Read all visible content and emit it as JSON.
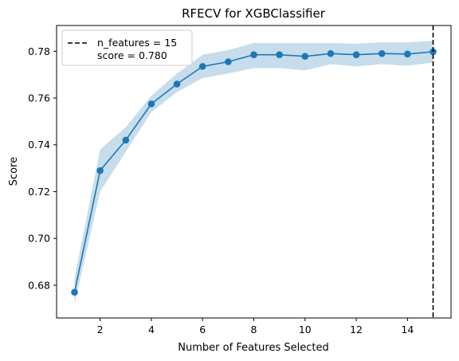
{
  "chart_data": {
    "type": "line",
    "title": "RFECV for XGBClassifier",
    "xlabel": "Number of Features Selected",
    "ylabel": "Score",
    "xlim": [
      0.3,
      15.7
    ],
    "ylim": [
      0.666,
      0.791
    ],
    "xticks": [
      2,
      4,
      6,
      8,
      10,
      12,
      14
    ],
    "yticks": [
      0.68,
      0.7,
      0.72,
      0.74,
      0.76,
      0.78
    ],
    "ytick_labels": [
      "0.68",
      "0.70",
      "0.72",
      "0.74",
      "0.76",
      "0.78"
    ],
    "grid": false,
    "legend_position": "top-left",
    "colors": {
      "line": "#1f77b4",
      "band": "#1f77b4",
      "vline": "#000000"
    },
    "series": [
      {
        "x": [
          1,
          2,
          3,
          4,
          5,
          6,
          7,
          8,
          9,
          10,
          11,
          12,
          13,
          14,
          15
        ],
        "values": [
          0.677,
          0.729,
          0.742,
          0.7575,
          0.766,
          0.7735,
          0.7755,
          0.7785,
          0.7785,
          0.7778,
          0.779,
          0.7785,
          0.779,
          0.7788,
          0.7798
        ],
        "upper": [
          0.683,
          0.738,
          0.7475,
          0.761,
          0.7705,
          0.7785,
          0.7805,
          0.7835,
          0.7835,
          0.7835,
          0.7835,
          0.7832,
          0.7838,
          0.7838,
          0.7845
        ],
        "lower": [
          0.672,
          0.72,
          0.737,
          0.754,
          0.7625,
          0.7685,
          0.7705,
          0.7728,
          0.7728,
          0.7718,
          0.7745,
          0.7735,
          0.7745,
          0.7738,
          0.7752
        ]
      }
    ],
    "vline": {
      "x": 15
    },
    "legend": {
      "line1": "n_features = 15",
      "line2": "score = 0.780"
    }
  }
}
